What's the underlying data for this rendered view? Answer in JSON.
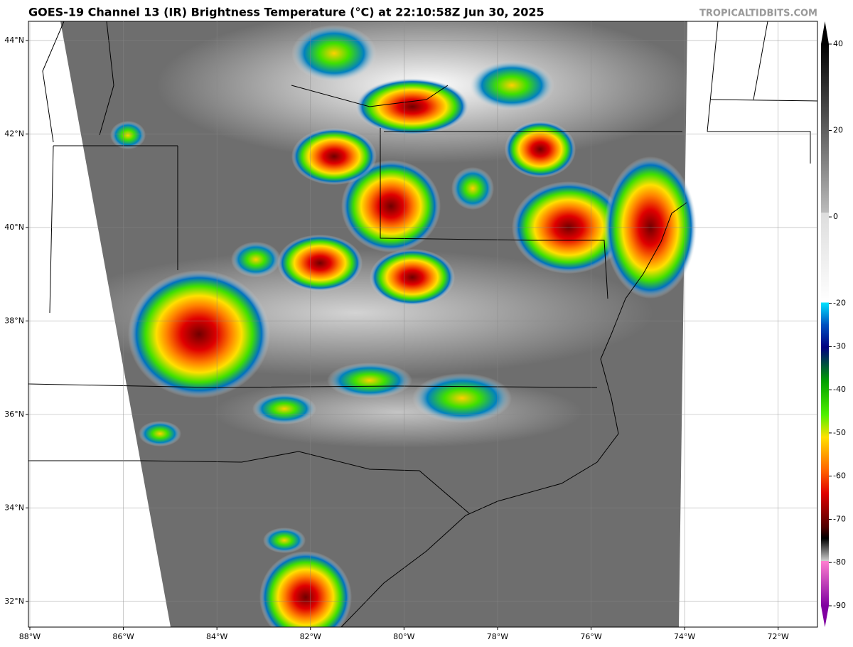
{
  "map": {
    "title": "GOES-19 Channel 13 (IR) Brightness Temperature (°C) at 22:10:58Z Jun 30, 2025",
    "credit": "TROPICALTIDBITS.COM",
    "xlim": [
      -88.03,
      -71.16
    ],
    "ylim": [
      31.45,
      44.41
    ],
    "xticks": [
      {
        "value": -88,
        "label": "88°W"
      },
      {
        "value": -86,
        "label": "86°W"
      },
      {
        "value": -84,
        "label": "84°W"
      },
      {
        "value": -82,
        "label": "82°W"
      },
      {
        "value": -80,
        "label": "80°W"
      },
      {
        "value": -78,
        "label": "78°W"
      },
      {
        "value": -76,
        "label": "76°W"
      },
      {
        "value": -74,
        "label": "74°W"
      },
      {
        "value": -72,
        "label": "72°W"
      }
    ],
    "yticks": [
      {
        "value": 44,
        "label": "44°N"
      },
      {
        "value": 42,
        "label": "42°N"
      },
      {
        "value": 40,
        "label": "40°N"
      },
      {
        "value": 38,
        "label": "38°N"
      },
      {
        "value": 36,
        "label": "36°N"
      },
      {
        "value": 34,
        "label": "34°N"
      },
      {
        "value": 32,
        "label": "32°N"
      }
    ],
    "grid": true,
    "colorbar": {
      "lim": [
        -90,
        40
      ],
      "ticks": [
        40,
        20,
        0,
        -20,
        -30,
        -40,
        -50,
        -60,
        -70,
        -80,
        -90
      ]
    }
  }
}
